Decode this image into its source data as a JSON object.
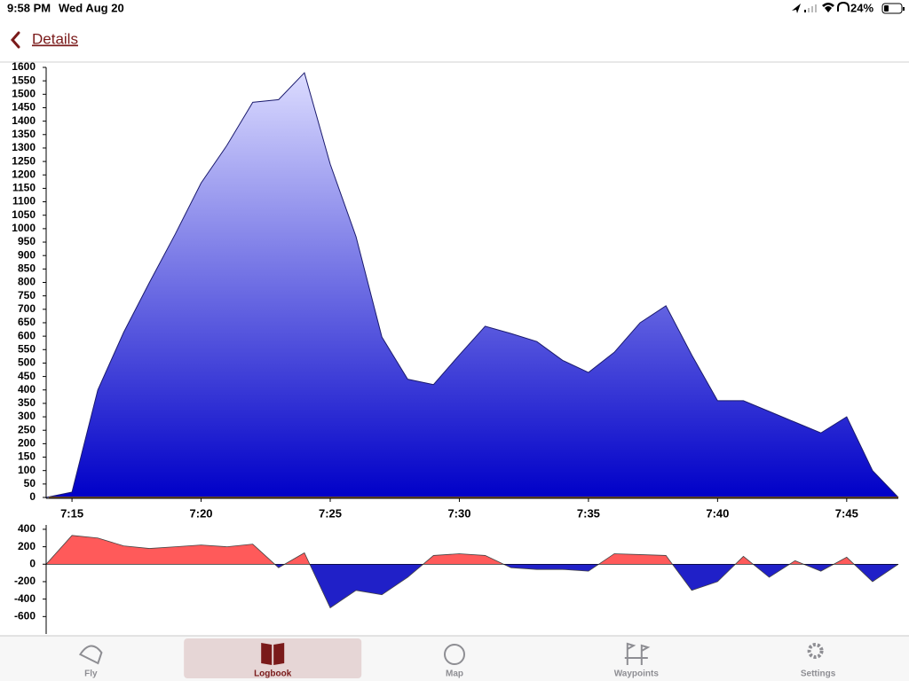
{
  "status_bar": {
    "time": "9:58 PM",
    "date": "Wed Aug 20",
    "battery": "24%"
  },
  "nav": {
    "back": "Details"
  },
  "chart_data": [
    {
      "type": "area",
      "x": [
        "7:14",
        "7:15",
        "7:16",
        "7:17",
        "7:18",
        "7:19",
        "7:20",
        "7:21",
        "7:22",
        "7:23",
        "7:24",
        "7:25",
        "7:26",
        "7:27",
        "7:28",
        "7:29",
        "7:30",
        "7:31",
        "7:32",
        "7:33",
        "7:34",
        "7:35",
        "7:36",
        "7:37",
        "7:38",
        "7:39",
        "7:40",
        "7:41",
        "7:42",
        "7:43",
        "7:44",
        "7:45",
        "7:46",
        "7:47"
      ],
      "values": [
        0,
        20,
        400,
        614,
        800,
        980,
        1170,
        1310,
        1470,
        1480,
        1580,
        1240,
        970,
        597,
        440,
        420,
        530,
        637,
        610,
        580,
        510,
        465,
        540,
        650,
        713,
        530,
        360,
        360,
        320,
        280,
        240,
        300,
        100,
        0
      ],
      "color": "#0000c8",
      "top_color": "#dcdcff",
      "line_color": "#1a1a6e",
      "xlim": [
        "7:14",
        "7:47"
      ],
      "xticks": [
        "7:15",
        "7:20",
        "7:25",
        "7:30",
        "7:35",
        "7:40",
        "7:45"
      ],
      "ylim": [
        0,
        1600
      ],
      "yticks": [
        0,
        50,
        100,
        150,
        200,
        250,
        300,
        350,
        400,
        450,
        500,
        550,
        600,
        650,
        700,
        750,
        800,
        850,
        900,
        950,
        1000,
        1050,
        1100,
        1150,
        1200,
        1250,
        1300,
        1350,
        1400,
        1450,
        1500,
        1550,
        1600
      ]
    },
    {
      "type": "signed-area",
      "x": [
        "7:14",
        "7:15",
        "7:16",
        "7:17",
        "7:18",
        "7:19",
        "7:20",
        "7:21",
        "7:22",
        "7:23",
        "7:24",
        "7:25",
        "7:26",
        "7:27",
        "7:28",
        "7:29",
        "7:30",
        "7:31",
        "7:32",
        "7:33",
        "7:34",
        "7:35",
        "7:36",
        "7:37",
        "7:38",
        "7:39",
        "7:40",
        "7:41",
        "7:42",
        "7:43",
        "7:44",
        "7:45",
        "7:46",
        "7:47"
      ],
      "values": [
        0,
        330,
        300,
        210,
        180,
        200,
        220,
        200,
        230,
        -40,
        130,
        -500,
        -300,
        -350,
        -150,
        100,
        120,
        100,
        -40,
        -60,
        -60,
        -80,
        120,
        110,
        100,
        -300,
        -200,
        90,
        -150,
        40,
        -80,
        80,
        -200,
        0
      ],
      "color": "#ff5a5a",
      "negative_color": "#2020c8",
      "line_color": "#444444",
      "xlim": [
        "7:14",
        "7:47"
      ],
      "ylim": [
        -800,
        450
      ],
      "yticks": [
        400,
        200,
        0,
        -200,
        -400,
        -600
      ]
    }
  ],
  "tabs": [
    {
      "label": "Fly"
    },
    {
      "label": "Logbook",
      "selected": true
    },
    {
      "label": "Map"
    },
    {
      "label": "Waypoints"
    },
    {
      "label": "Settings"
    }
  ]
}
